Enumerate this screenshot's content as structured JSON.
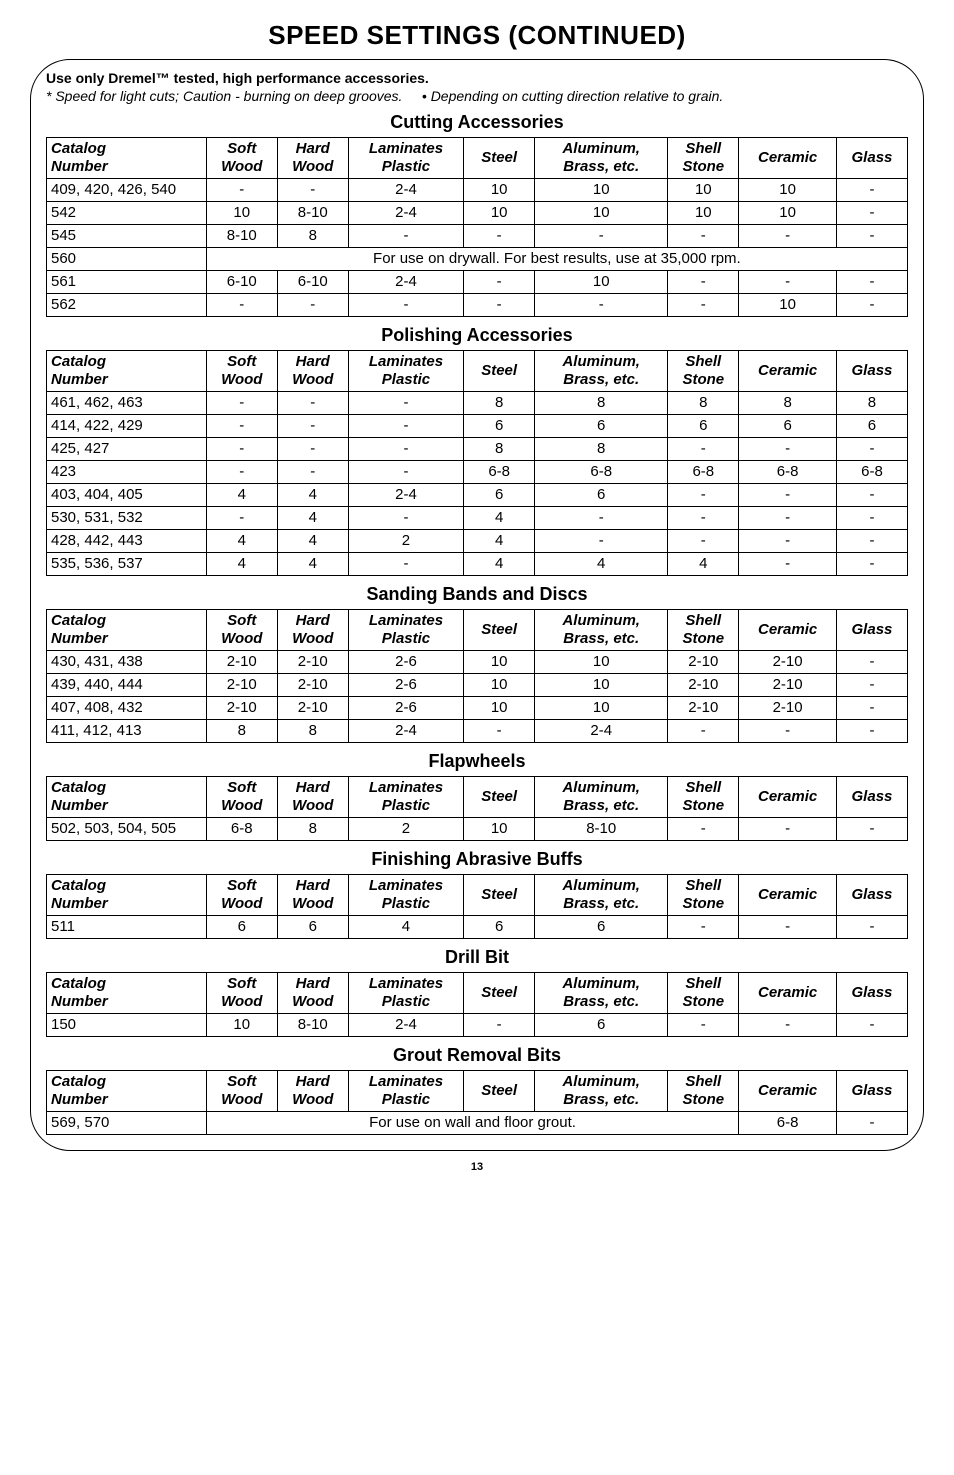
{
  "page_title": "SPEED SETTINGS (CONTINUED)",
  "subhead_bold": "Use only Dremel™ tested, high performance accessories.",
  "subhead_left": "* Speed for light cuts; Caution - burning on deep grooves.",
  "subhead_right": "• Depending on cutting direction relative to grain.",
  "cols": {
    "catalog": "Catalog Number",
    "soft": "Soft Wood",
    "hard": "Hard Wood",
    "lam": "Laminates Plastic",
    "steel": "Steel",
    "alum": "Aluminum, Brass, etc.",
    "shell": "Shell Stone",
    "ceramic": "Ceramic",
    "glass": "Glass"
  },
  "sections": [
    {
      "title": "Cutting Accessories",
      "rows": [
        {
          "cat": "409, 420, 426, 540",
          "soft": "-",
          "hard": "-",
          "lam": "2-4",
          "steel": "10",
          "alum": "10",
          "shell": "10",
          "ceramic": "10",
          "glass": "-"
        },
        {
          "cat": "542",
          "soft": "10",
          "hard": "8-10",
          "lam": "2-4",
          "steel": "10",
          "alum": "10",
          "shell": "10",
          "ceramic": "10",
          "glass": "-"
        },
        {
          "cat": "545",
          "soft": "8-10",
          "hard": "8",
          "lam": "-",
          "steel": "-",
          "alum": "-",
          "shell": "-",
          "ceramic": "-",
          "glass": "-"
        },
        {
          "cat": "560",
          "span": "For use on drywall. For best results, use at 35,000 rpm."
        },
        {
          "cat": "561",
          "soft": "6-10",
          "hard": "6-10",
          "lam": "2-4",
          "steel": "-",
          "alum": "10",
          "shell": "-",
          "ceramic": "-",
          "glass": "-"
        },
        {
          "cat": "562",
          "soft": "-",
          "hard": "-",
          "lam": "-",
          "steel": "-",
          "alum": "-",
          "shell": "-",
          "ceramic": "10",
          "glass": "-"
        }
      ]
    },
    {
      "title": "Polishing Accessories",
      "rows": [
        {
          "cat": "461, 462, 463",
          "soft": "-",
          "hard": "-",
          "lam": "-",
          "steel": "8",
          "alum": "8",
          "shell": "8",
          "ceramic": "8",
          "glass": "8"
        },
        {
          "cat": "414, 422, 429",
          "soft": "-",
          "hard": "-",
          "lam": "-",
          "steel": "6",
          "alum": "6",
          "shell": "6",
          "ceramic": "6",
          "glass": "6"
        },
        {
          "cat": "425, 427",
          "soft": "-",
          "hard": "-",
          "lam": "-",
          "steel": "8",
          "alum": "8",
          "shell": "-",
          "ceramic": "-",
          "glass": "-"
        },
        {
          "cat": "423",
          "soft": "-",
          "hard": "-",
          "lam": "-",
          "steel": "6-8",
          "alum": "6-8",
          "shell": "6-8",
          "ceramic": "6-8",
          "glass": "6-8"
        },
        {
          "cat": "403, 404, 405",
          "soft": "4",
          "hard": "4",
          "lam": "2-4",
          "steel": "6",
          "alum": "6",
          "shell": "-",
          "ceramic": "-",
          "glass": "-"
        },
        {
          "cat": "530, 531, 532",
          "soft": "-",
          "hard": "4",
          "lam": "-",
          "steel": "4",
          "alum": "-",
          "shell": "-",
          "ceramic": "-",
          "glass": "-"
        },
        {
          "cat": "428, 442, 443",
          "soft": "4",
          "hard": "4",
          "lam": "2",
          "steel": "4",
          "alum": "-",
          "shell": "-",
          "ceramic": "-",
          "glass": "-"
        },
        {
          "cat": "535, 536, 537",
          "soft": "4",
          "hard": "4",
          "lam": "-",
          "steel": "4",
          "alum": "4",
          "shell": "4",
          "ceramic": "-",
          "glass": "-"
        }
      ]
    },
    {
      "title": "Sanding Bands and Discs",
      "rows": [
        {
          "cat": "430, 431, 438",
          "soft": "2-10",
          "hard": "2-10",
          "lam": "2-6",
          "steel": "10",
          "alum": "10",
          "shell": "2-10",
          "ceramic": "2-10",
          "glass": "-"
        },
        {
          "cat": "439, 440, 444",
          "soft": "2-10",
          "hard": "2-10",
          "lam": "2-6",
          "steel": "10",
          "alum": "10",
          "shell": "2-10",
          "ceramic": "2-10",
          "glass": "-"
        },
        {
          "cat": "407, 408, 432",
          "soft": "2-10",
          "hard": "2-10",
          "lam": "2-6",
          "steel": "10",
          "alum": "10",
          "shell": "2-10",
          "ceramic": "2-10",
          "glass": "-"
        },
        {
          "cat": "411, 412, 413",
          "soft": "8",
          "hard": "8",
          "lam": "2-4",
          "steel": "-",
          "alum": "2-4",
          "shell": "-",
          "ceramic": "-",
          "glass": "-"
        }
      ]
    },
    {
      "title": "Flapwheels",
      "rows": [
        {
          "cat": "502, 503, 504, 505",
          "soft": "6-8",
          "hard": "8",
          "lam": "2",
          "steel": "10",
          "alum": "8-10",
          "shell": "-",
          "ceramic": "-",
          "glass": "-"
        }
      ]
    },
    {
      "title": "Finishing Abrasive Buffs",
      "rows": [
        {
          "cat": "511",
          "soft": "6",
          "hard": "6",
          "lam": "4",
          "steel": "6",
          "alum": "6",
          "shell": "-",
          "ceramic": "-",
          "glass": "-"
        }
      ]
    },
    {
      "title": "Drill Bit",
      "rows": [
        {
          "cat": "150",
          "soft": "10",
          "hard": "8-10",
          "lam": "2-4",
          "steel": "-",
          "alum": "6",
          "shell": "-",
          "ceramic": "-",
          "glass": "-"
        }
      ]
    },
    {
      "title": "Grout Removal Bits",
      "rows": [
        {
          "cat": "569, 570",
          "span6": "For use on wall and floor grout.",
          "ceramic": "6-8",
          "glass": "-"
        }
      ]
    }
  ],
  "page_number": "13"
}
